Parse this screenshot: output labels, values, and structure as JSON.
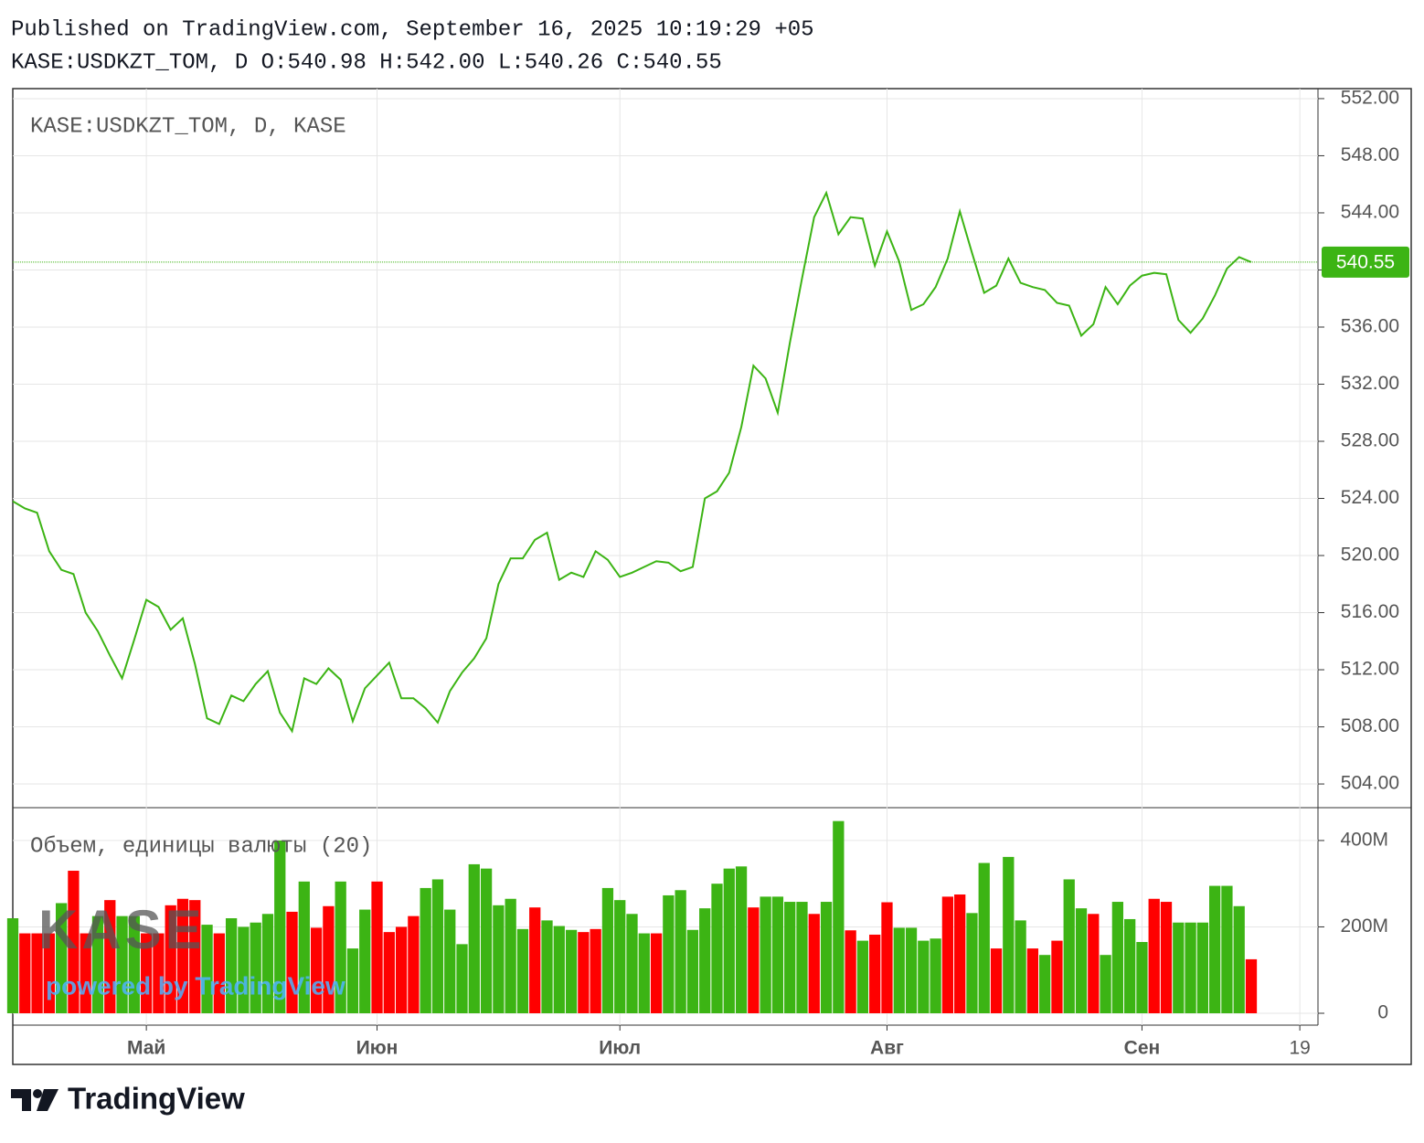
{
  "header": {
    "published": "Published on TradingView.com, September 16, 2025 10:19:29 +05",
    "ohlc": "KASE:USDKZT_TOM, D O:540.98 H:542.00 L:540.26 C:540.55"
  },
  "watermark": {
    "logo": "KASE",
    "powered": "powered by TradingView"
  },
  "footer": {
    "brand": "TradingView"
  },
  "chart_data": [
    {
      "type": "line",
      "title": "KASE:USDKZT_TOM, D, KASE",
      "color": "#3cb414",
      "grid": true,
      "categories": [
        null,
        null,
        null,
        null,
        null,
        null,
        null,
        null,
        null,
        null,
        null,
        "Май",
        null,
        null,
        null,
        null,
        null,
        null,
        null,
        null,
        null,
        null,
        null,
        null,
        null,
        null,
        null,
        null,
        null,
        null,
        "Июн",
        null,
        null,
        null,
        null,
        null,
        null,
        null,
        null,
        null,
        null,
        null,
        null,
        null,
        null,
        null,
        null,
        null,
        null,
        null,
        "Июл",
        null,
        null,
        null,
        null,
        null,
        null,
        null,
        null,
        null,
        null,
        null,
        null,
        null,
        null,
        null,
        null,
        null,
        null,
        null,
        null,
        null,
        "Авг",
        null,
        null,
        null,
        null,
        null,
        null,
        null,
        null,
        null,
        null,
        null,
        null,
        null,
        null,
        null,
        null,
        null,
        null,
        null,
        null,
        "Сен",
        null,
        null,
        null,
        null,
        null,
        null,
        null,
        null,
        null,
        null,
        null,
        null,
        "19",
        null
      ],
      "values": [
        523.8,
        523.3,
        523.0,
        520.3,
        519.0,
        518.7,
        516.0,
        514.7,
        513.0,
        511.4,
        514.1,
        516.9,
        516.4,
        514.8,
        515.6,
        512.4,
        508.6,
        508.2,
        510.2,
        509.8,
        511.0,
        511.9,
        509.0,
        507.7,
        511.4,
        511.0,
        512.1,
        511.3,
        508.4,
        510.7,
        511.6,
        512.5,
        510.0,
        510.0,
        509.3,
        508.3,
        510.5,
        511.8,
        512.8,
        514.2,
        518.0,
        519.8,
        519.8,
        521.1,
        521.6,
        518.3,
        518.8,
        518.5,
        520.3,
        519.7,
        518.5,
        518.8,
        519.2,
        519.6,
        519.5,
        518.9,
        519.2,
        524.0,
        524.5,
        525.8,
        529.0,
        533.3,
        532.4,
        530.0,
        534.9,
        539.4,
        543.7,
        545.4,
        542.5,
        543.7,
        543.6,
        540.3,
        542.7,
        540.6,
        537.2,
        537.6,
        538.8,
        540.8,
        544.1,
        541.2,
        538.4,
        538.9,
        540.8,
        539.1,
        538.8,
        538.6,
        537.7,
        537.5,
        535.4,
        536.2,
        538.8,
        537.6,
        538.9,
        539.6,
        539.8,
        539.7,
        536.5,
        535.6,
        536.6,
        538.2,
        540.1,
        540.9,
        540.55,
        null,
        null,
        null,
        null,
        null
      ],
      "ylim": [
        502.34,
        552.7
      ],
      "yticks": [
        {
          "value": 504,
          "label": "504.00"
        },
        {
          "value": 508,
          "label": "508.00"
        },
        {
          "value": 512,
          "label": "512.00"
        },
        {
          "value": 516,
          "label": "516.00"
        },
        {
          "value": 520,
          "label": "520.00"
        },
        {
          "value": 524,
          "label": "524.00"
        },
        {
          "value": 528,
          "label": "528.00"
        },
        {
          "value": 532,
          "label": "532.00"
        },
        {
          "value": 536,
          "label": "536.00"
        },
        {
          "value": 540,
          "label": "540.00"
        },
        {
          "value": 544,
          "label": "544.00"
        },
        {
          "value": 548,
          "label": "548.00"
        },
        {
          "value": 552,
          "label": "552.00"
        }
      ]
    },
    {
      "type": "bar",
      "title": "Объем, единицы валюты (20)",
      "grid": true,
      "values": [
        220000000,
        185000000,
        185000000,
        185000000,
        255000000,
        330000000,
        185000000,
        225000000,
        262000000,
        225000000,
        225000000,
        185000000,
        185000000,
        250000000,
        265000000,
        262000000,
        205000000,
        185000000,
        220000000,
        200000000,
        210000000,
        230000000,
        400000000,
        235000000,
        305000000,
        198000000,
        248000000,
        305000000,
        150000000,
        240000000,
        305000000,
        188000000,
        200000000,
        225000000,
        290000000,
        310000000,
        240000000,
        160000000,
        345000000,
        335000000,
        250000000,
        265000000,
        195000000,
        245000000,
        215000000,
        202000000,
        193000000,
        188000000,
        195000000,
        290000000,
        262000000,
        230000000,
        185000000,
        185000000,
        273000000,
        285000000,
        193000000,
        243000000,
        300000000,
        335000000,
        340000000,
        245000000,
        270000000,
        270000000,
        258000000,
        258000000,
        230000000,
        258000000,
        445000000,
        192000000,
        168000000,
        182000000,
        257000000,
        198000000,
        198000000,
        168000000,
        173000000,
        270000000,
        275000000,
        232000000,
        348000000,
        150000000,
        362000000,
        215000000,
        150000000,
        135000000,
        168000000,
        310000000,
        243000000,
        230000000,
        135000000,
        258000000,
        218000000,
        165000000,
        265000000,
        258000000,
        210000000,
        210000000,
        210000000,
        295000000,
        295000000,
        248000000,
        125000000,
        null,
        null,
        null,
        null,
        null
      ],
      "colors": [
        "#3cb414",
        "#ff0000",
        "#ff0000",
        "#ff0000",
        "#3cb414",
        "#ff0000",
        "#ff0000",
        "#3cb414",
        "#ff0000",
        "#3cb414",
        "#3cb414",
        "#ff0000",
        "#ff0000",
        "#ff0000",
        "#ff0000",
        "#ff0000",
        "#3cb414",
        "#ff0000",
        "#3cb414",
        "#3cb414",
        "#3cb414",
        "#3cb414",
        "#3cb414",
        "#ff0000",
        "#3cb414",
        "#ff0000",
        "#ff0000",
        "#3cb414",
        "#3cb414",
        "#3cb414",
        "#ff0000",
        "#ff0000",
        "#ff0000",
        "#ff0000",
        "#3cb414",
        "#3cb414",
        "#3cb414",
        "#3cb414",
        "#3cb414",
        "#3cb414",
        "#3cb414",
        "#3cb414",
        "#3cb414",
        "#ff0000",
        "#3cb414",
        "#3cb414",
        "#3cb414",
        "#ff0000",
        "#ff0000",
        "#3cb414",
        "#3cb414",
        "#3cb414",
        "#3cb414",
        "#ff0000",
        "#3cb414",
        "#3cb414",
        "#3cb414",
        "#3cb414",
        "#3cb414",
        "#3cb414",
        "#3cb414",
        "#ff0000",
        "#3cb414",
        "#3cb414",
        "#3cb414",
        "#3cb414",
        "#ff0000",
        "#3cb414",
        "#3cb414",
        "#ff0000",
        "#3cb414",
        "#ff0000",
        "#ff0000",
        "#3cb414",
        "#3cb414",
        "#3cb414",
        "#3cb414",
        "#ff0000",
        "#ff0000",
        "#3cb414",
        "#3cb414",
        "#ff0000",
        "#3cb414",
        "#3cb414",
        "#ff0000",
        "#3cb414",
        "#ff0000",
        "#3cb414",
        "#3cb414",
        "#ff0000",
        "#3cb414",
        "#3cb414",
        "#3cb414",
        "#3cb414",
        "#ff0000",
        "#ff0000",
        "#3cb414",
        "#3cb414",
        "#3cb414",
        "#3cb414",
        "#3cb414",
        "#3cb414",
        "#ff0000",
        null,
        null,
        null,
        null,
        null
      ],
      "ylim": [
        -27500000,
        476000000
      ],
      "yticks": [
        0,
        {
          "value": 200000000,
          "label": "200M"
        },
        {
          "value": 400000000,
          "label": "400M"
        }
      ]
    }
  ]
}
